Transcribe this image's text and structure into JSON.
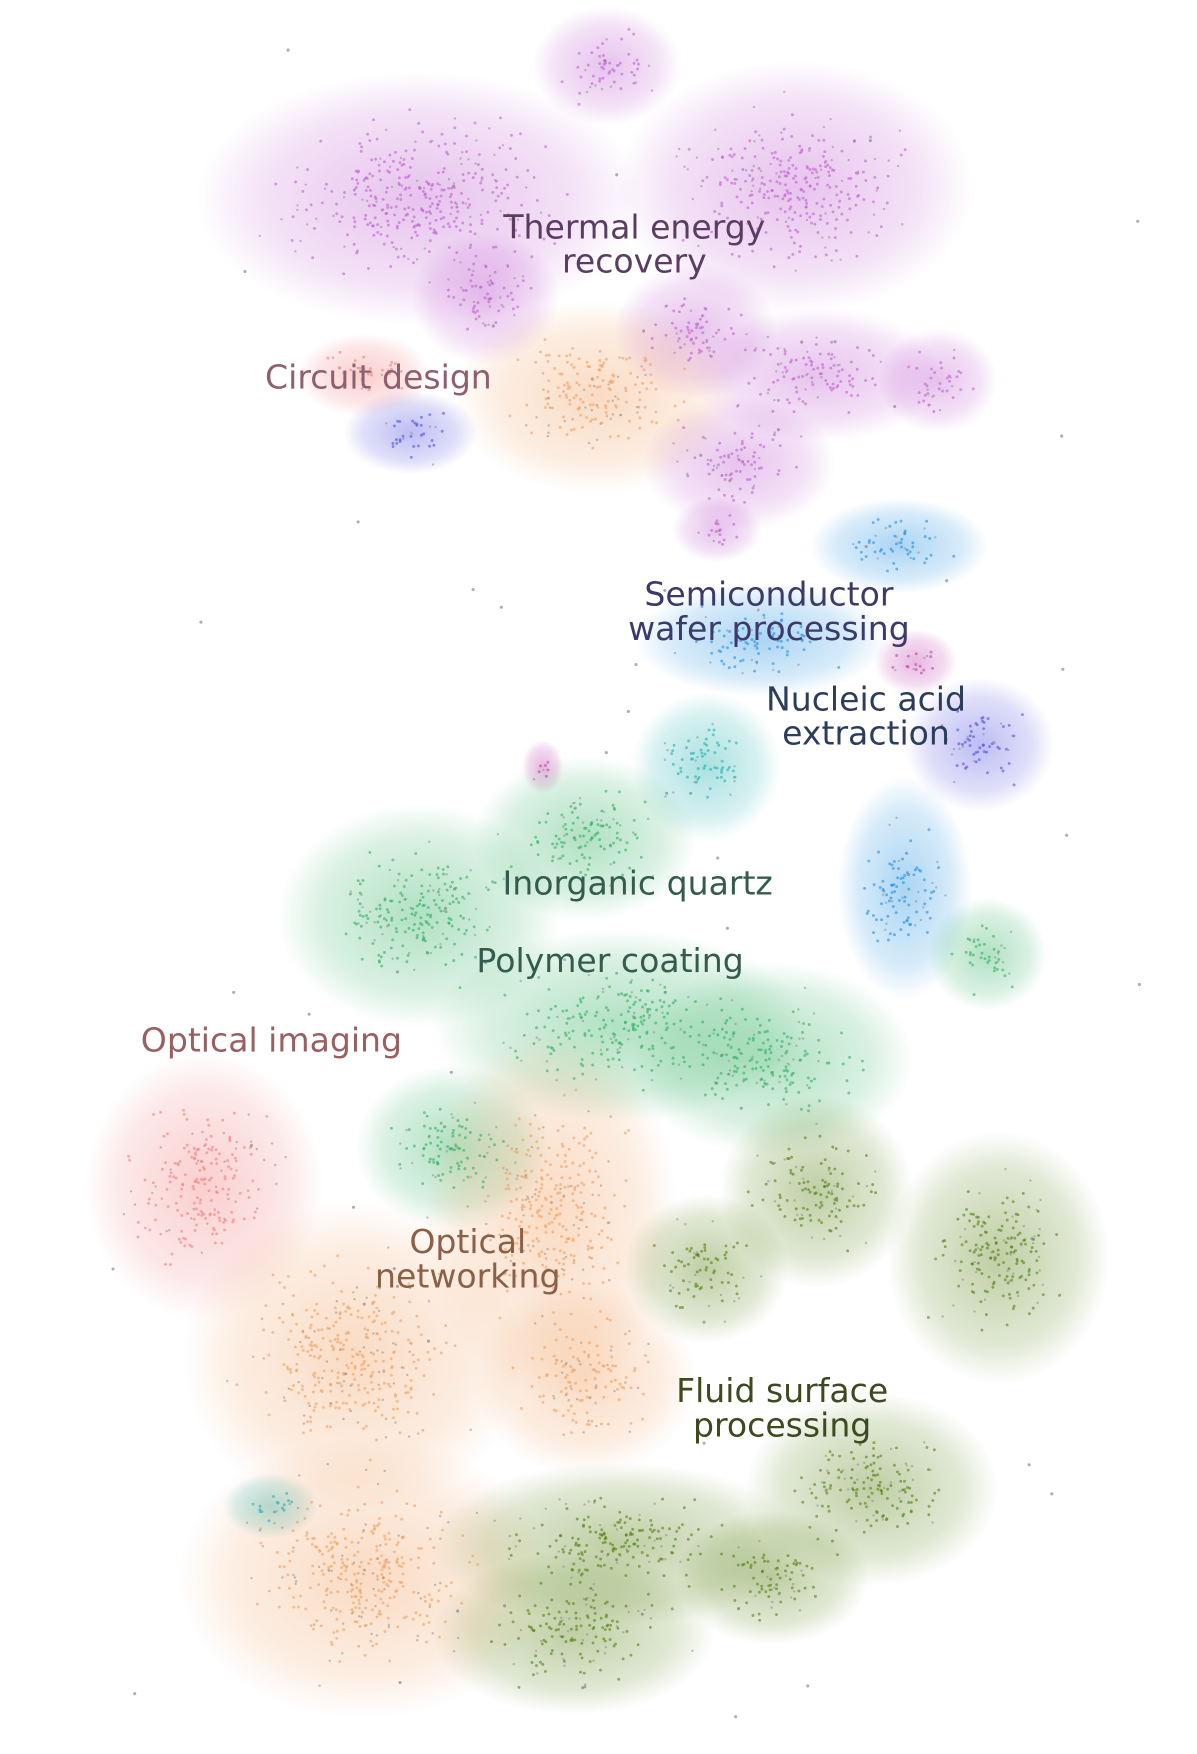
{
  "labels": [
    {
      "lines": [
        "Thermal energy",
        "recovery"
      ],
      "color": "#5b3d63"
    },
    {
      "lines": [
        "Circuit design"
      ],
      "color": "#8f5f70"
    },
    {
      "lines": [
        "Semiconductor",
        "wafer processing"
      ],
      "color": "#3c3a6b"
    },
    {
      "lines": [
        "Nucleic acid",
        "extraction"
      ],
      "color": "#2c3d5c"
    },
    {
      "lines": [
        "Inorganic quartz"
      ],
      "color": "#345c4e"
    },
    {
      "lines": [
        "Polymer coating"
      ],
      "color": "#345c4e"
    },
    {
      "lines": [
        "Optical imaging"
      ],
      "color": "#9a5f60"
    },
    {
      "lines": [
        "Optical",
        "networking"
      ],
      "color": "#8a6048"
    },
    {
      "lines": [
        "Fluid surface",
        "processing"
      ],
      "color": "#3d4a1e"
    }
  ]
}
